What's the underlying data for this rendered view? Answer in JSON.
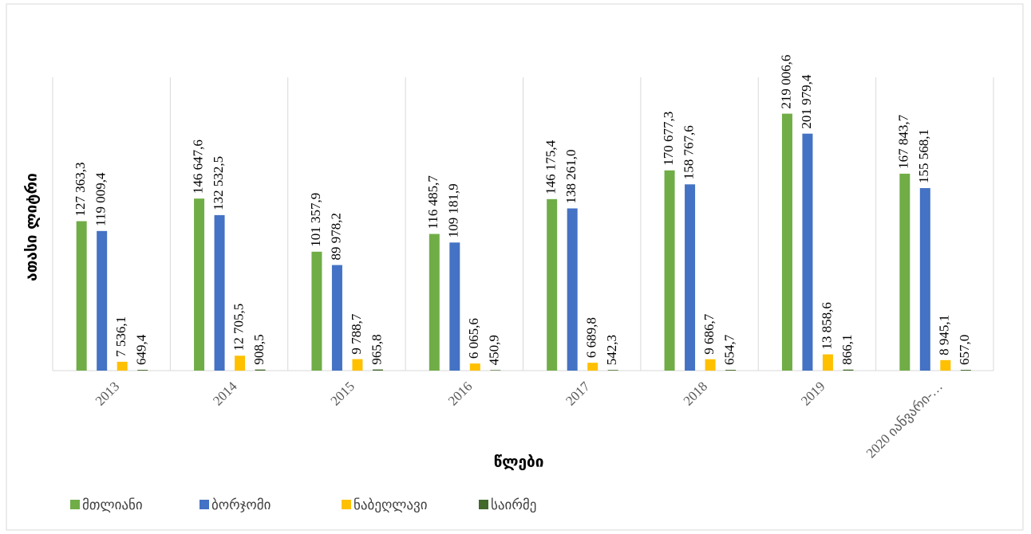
{
  "chart_data": {
    "type": "bar",
    "y_label": "ათასი ლიტრი",
    "x_label": "წლები",
    "categories": [
      "2013",
      "2014",
      "2015",
      "2016",
      "2017",
      "2018",
      "2019",
      "2020 იანვარი-…"
    ],
    "ylim": [
      0,
      250000
    ],
    "series": [
      {
        "name": "მთლიანი",
        "color": "#70ad47",
        "values": [
          127363.3,
          146647.6,
          101357.9,
          116485.7,
          146175.4,
          170677.3,
          219006.6,
          167843.7
        ],
        "value_labels": [
          "127 363,3",
          "146 647,6",
          "101 357,9",
          "116 485,7",
          "146 175,4",
          "170 677,3",
          "219 006,6",
          "167 843,7"
        ]
      },
      {
        "name": "ბორჯომი",
        "color": "#4472c4",
        "values": [
          119009.4,
          132532.5,
          89978.2,
          109181.9,
          138261.0,
          158767.6,
          201979.4,
          155568.1
        ],
        "value_labels": [
          "119 009,4",
          "132 532,5",
          "89 978,2",
          "109 181,9",
          "138 261,0",
          "158 767,6",
          "201 979,4",
          "155 568,1"
        ]
      },
      {
        "name": "ნაბეღლავი",
        "color": "#ffc000",
        "values": [
          7536.1,
          12705.5,
          9788.7,
          6065.6,
          6689.8,
          9686.7,
          13858.6,
          8945.1
        ],
        "value_labels": [
          "7 536,1",
          "12 705,5",
          "9 788,7",
          "6 065,6",
          "6 689,8",
          "9 686,7",
          "13 858,6",
          "8 945,1"
        ]
      },
      {
        "name": "საირმე",
        "color": "#43682b",
        "values": [
          649.4,
          908.5,
          965.8,
          450.9,
          542.3,
          654.7,
          866.1,
          657.0
        ],
        "value_labels": [
          "649,4",
          "908,5",
          "965,8",
          "450,9",
          "542,3",
          "654,7",
          "866,1",
          "657,0"
        ]
      }
    ]
  }
}
